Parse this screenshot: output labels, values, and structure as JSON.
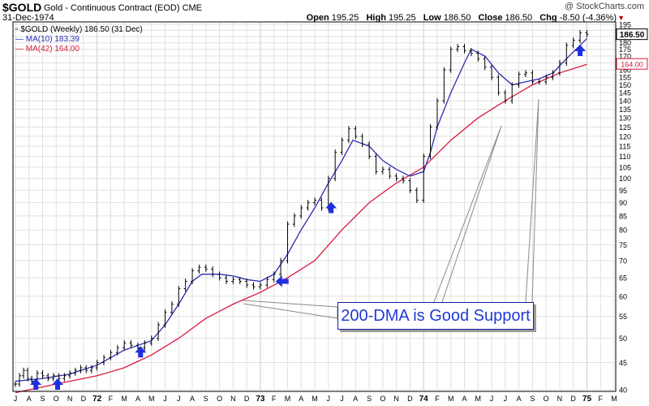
{
  "header": {
    "symbol": "$GOLD",
    "description": "Gold - Continuous Contract (EOD)",
    "exchange": "CME",
    "date": "31-Dec-1974",
    "logo": "@ StockCharts.com",
    "quote": {
      "open_label": "Open",
      "open": "195.25",
      "high_label": "High",
      "high": "195.25",
      "low_label": "Low",
      "low": "186.50",
      "close_label": "Close",
      "close": "186.50",
      "chg_label": "Chg",
      "chg": "-8.50 (-4.36%)",
      "chg_color": "#c00000"
    }
  },
  "legend": {
    "main": "$GOLD (Weekly) 186.50 (31 Dec)",
    "ma10": "MA(10) 183.39",
    "ma42": "MA(42) 164.00"
  },
  "annotation": "200-DMA is Good Support",
  "colors": {
    "ma10": "#2b2bb5",
    "ma42": "#d8193c",
    "price": "#000000",
    "arrow": "#1f2fe0",
    "grid": "#e0e0e0"
  },
  "chart_data": {
    "type": "line",
    "x_axis": {
      "range": [
        "1971-07",
        "1975-03"
      ],
      "labels": [
        "J",
        "A",
        "S",
        "O",
        "N",
        "D",
        "72",
        "F",
        "M",
        "A",
        "M",
        "J",
        "J",
        "A",
        "S",
        "O",
        "N",
        "D",
        "73",
        "F",
        "M",
        "A",
        "M",
        "J",
        "J",
        "A",
        "S",
        "O",
        "N",
        "D",
        "74",
        "F",
        "M",
        "A",
        "M",
        "J",
        "J",
        "A",
        "S",
        "O",
        "N",
        "D",
        "75",
        "F",
        "M"
      ]
    },
    "y_axis": {
      "scale": "log",
      "range": [
        40,
        195
      ],
      "ticks": [
        40,
        45,
        50,
        55,
        60,
        65,
        70,
        75,
        80,
        85,
        90,
        95,
        100,
        105,
        110,
        115,
        120,
        125,
        130,
        135,
        140,
        145,
        150,
        155,
        160,
        165,
        170,
        175,
        180,
        185,
        190,
        195
      ],
      "last_labels": [
        {
          "value": 186.5,
          "text": "186.50",
          "series": "price"
        },
        {
          "value": 164.0,
          "text": "164.00",
          "series": "MA(42)"
        }
      ]
    },
    "grid": true,
    "series": [
      {
        "name": "$GOLD (Weekly)",
        "kind": "ohlc-bars",
        "points": [
          [
            0,
            41.0
          ],
          [
            0.3,
            42.5
          ],
          [
            0.6,
            43.5
          ],
          [
            0.9,
            42.0
          ],
          [
            1.2,
            41.5
          ],
          [
            1.6,
            43.0
          ],
          [
            2.0,
            42.5
          ],
          [
            2.4,
            42.0
          ],
          [
            2.8,
            42.5
          ],
          [
            3.2,
            42.0
          ],
          [
            3.6,
            42.5
          ],
          [
            4.0,
            43.0
          ],
          [
            4.4,
            43.5
          ],
          [
            4.8,
            44.0
          ],
          [
            5.2,
            43.5
          ],
          [
            5.6,
            44.0
          ],
          [
            6.0,
            45.0
          ],
          [
            6.5,
            46.0
          ],
          [
            7.0,
            47.0
          ],
          [
            7.5,
            48.0
          ],
          [
            8.0,
            49.0
          ],
          [
            8.5,
            48.5
          ],
          [
            9.0,
            48.0
          ],
          [
            9.5,
            49.0
          ],
          [
            10.0,
            50.0
          ],
          [
            10.5,
            53.0
          ],
          [
            11.0,
            56.0
          ],
          [
            11.5,
            58.0
          ],
          [
            12.0,
            62.0
          ],
          [
            12.5,
            64.0
          ],
          [
            13.0,
            67.0
          ],
          [
            13.5,
            68.0
          ],
          [
            14.0,
            67.5
          ],
          [
            14.5,
            66.0
          ],
          [
            15.0,
            65.0
          ],
          [
            15.5,
            64.0
          ],
          [
            16.0,
            64.5
          ],
          [
            16.5,
            64.0
          ],
          [
            17.0,
            63.0
          ],
          [
            17.5,
            62.5
          ],
          [
            18.0,
            63.0
          ],
          [
            18.5,
            64.5
          ],
          [
            19.0,
            66.0
          ],
          [
            19.5,
            70.0
          ],
          [
            20.0,
            82.0
          ],
          [
            20.5,
            85.0
          ],
          [
            21.0,
            88.0
          ],
          [
            21.5,
            90.0
          ],
          [
            22.0,
            91.0
          ],
          [
            22.5,
            88.0
          ],
          [
            23.0,
            100.0
          ],
          [
            23.5,
            112.0
          ],
          [
            24.0,
            118.0
          ],
          [
            24.5,
            124.0
          ],
          [
            25.0,
            120.0
          ],
          [
            25.5,
            116.0
          ],
          [
            26.0,
            110.0
          ],
          [
            26.5,
            103.0
          ],
          [
            27.0,
            104.0
          ],
          [
            27.5,
            101.0
          ],
          [
            28.0,
            100.0
          ],
          [
            28.5,
            99.0
          ],
          [
            29.0,
            95.0
          ],
          [
            29.5,
            91.0
          ],
          [
            30.0,
            110.0
          ],
          [
            30.5,
            125.0
          ],
          [
            31.0,
            140.0
          ],
          [
            31.5,
            160.0
          ],
          [
            32.0,
            175.0
          ],
          [
            32.5,
            177.0
          ],
          [
            33.0,
            174.0
          ],
          [
            33.5,
            172.0
          ],
          [
            34.0,
            168.0
          ],
          [
            34.5,
            162.0
          ],
          [
            35.0,
            155.0
          ],
          [
            35.5,
            145.0
          ],
          [
            36.0,
            140.0
          ],
          [
            36.5,
            150.0
          ],
          [
            37.0,
            157.0
          ],
          [
            37.5,
            158.0
          ],
          [
            38.0,
            152.0
          ],
          [
            38.5,
            152.0
          ],
          [
            39.0,
            155.0
          ],
          [
            39.5,
            158.0
          ],
          [
            40.0,
            165.0
          ],
          [
            40.5,
            178.0
          ],
          [
            41.0,
            182.0
          ],
          [
            41.5,
            188.0
          ],
          [
            42.0,
            186.5
          ]
        ]
      },
      {
        "name": "MA(10)",
        "kind": "line",
        "points": [
          [
            0,
            41.5
          ],
          [
            2,
            42.0
          ],
          [
            4,
            42.8
          ],
          [
            6,
            44.5
          ],
          [
            8,
            47.5
          ],
          [
            10,
            49.5
          ],
          [
            11,
            53.0
          ],
          [
            12,
            58.0
          ],
          [
            13,
            64.0
          ],
          [
            13.7,
            66.0
          ],
          [
            15,
            66.0
          ],
          [
            16,
            65.5
          ],
          [
            17,
            64.5
          ],
          [
            18,
            64.0
          ],
          [
            19,
            66.0
          ],
          [
            20,
            72.0
          ],
          [
            21,
            80.0
          ],
          [
            22,
            88.0
          ],
          [
            23,
            98.0
          ],
          [
            24,
            108.0
          ],
          [
            24.8,
            118.0
          ],
          [
            26,
            115.0
          ],
          [
            27,
            108.0
          ],
          [
            28,
            104.0
          ],
          [
            29,
            101.0
          ],
          [
            30,
            103.0
          ],
          [
            30.5,
            112.0
          ],
          [
            31,
            125.0
          ],
          [
            32,
            145.0
          ],
          [
            33,
            165.0
          ],
          [
            33.5,
            175.0
          ],
          [
            34.5,
            170.0
          ],
          [
            35.5,
            158.0
          ],
          [
            36.5,
            150.0
          ],
          [
            37.5,
            152.0
          ],
          [
            38.5,
            154.0
          ],
          [
            39.5,
            158.0
          ],
          [
            40.5,
            168.0
          ],
          [
            42,
            183.39
          ]
        ]
      },
      {
        "name": "MA(42)",
        "kind": "line",
        "points": [
          [
            0,
            39.5
          ],
          [
            2,
            40.5
          ],
          [
            4,
            41.5
          ],
          [
            6,
            42.5
          ],
          [
            8,
            44.0
          ],
          [
            10,
            46.5
          ],
          [
            12,
            50.0
          ],
          [
            14,
            54.5
          ],
          [
            16,
            58.0
          ],
          [
            18,
            61.0
          ],
          [
            20,
            65.0
          ],
          [
            22,
            70.0
          ],
          [
            24,
            80.0
          ],
          [
            26,
            90.0
          ],
          [
            28,
            98.0
          ],
          [
            30,
            105.0
          ],
          [
            32,
            118.0
          ],
          [
            34,
            130.0
          ],
          [
            36,
            140.0
          ],
          [
            38,
            150.0
          ],
          [
            40,
            158.0
          ],
          [
            42,
            164.0
          ]
        ]
      }
    ],
    "annotations": [
      {
        "type": "up-arrow",
        "x": 1.5,
        "value": 40.0
      },
      {
        "type": "up-arrow",
        "x": 3.1,
        "value": 40.0
      },
      {
        "type": "up-arrow",
        "x": 9.2,
        "value": 46.0
      },
      {
        "type": "left-arrow",
        "x": 19.6,
        "value": 64.0
      },
      {
        "type": "up-arrow",
        "x": 23.2,
        "value": 86.0
      },
      {
        "type": "up-arrow",
        "x": 41.5,
        "value": 170.0
      }
    ]
  }
}
